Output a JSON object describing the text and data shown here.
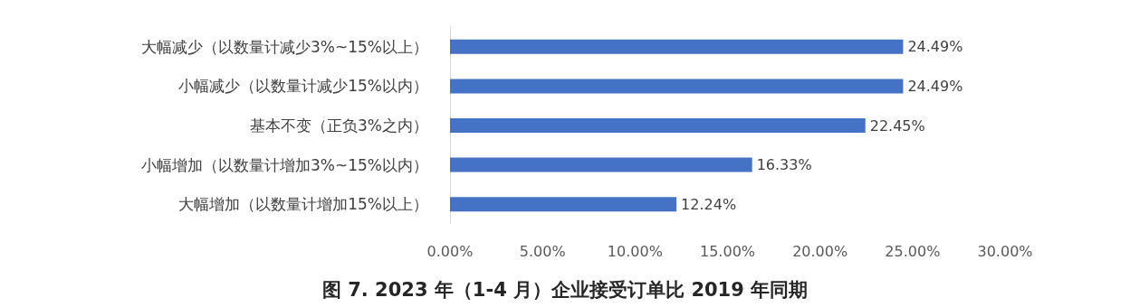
{
  "chart_data": {
    "type": "bar",
    "orientation": "horizontal",
    "title": "图 7. 2023 年（1-4 月）企业接受订单比 2019 年同期",
    "categories": [
      "大幅减少（以数量计减少3%~15%以上）",
      "小幅减少（以数量计减少15%以内）",
      "基本不变（正负3%之内）",
      "小幅增加（以数量计增加3%~15%以内）",
      "大幅增加（以数量计增加15%以上）"
    ],
    "values": [
      24.49,
      24.49,
      22.45,
      16.33,
      12.24
    ],
    "value_labels": [
      "24.49%",
      "24.49%",
      "22.45%",
      "16.33%",
      "12.24%"
    ],
    "color": "#4472c4",
    "xlim": [
      0,
      30
    ],
    "xticks": [
      {
        "value": 0,
        "label": "0.00%"
      },
      {
        "value": 5,
        "label": "5.00%"
      },
      {
        "value": 10,
        "label": "10.00%"
      },
      {
        "value": 15,
        "label": "15.00%"
      },
      {
        "value": 20,
        "label": "20.00%"
      },
      {
        "value": 25,
        "label": "25.00%"
      },
      {
        "value": 30,
        "label": "30.00%"
      }
    ],
    "grid": false
  }
}
